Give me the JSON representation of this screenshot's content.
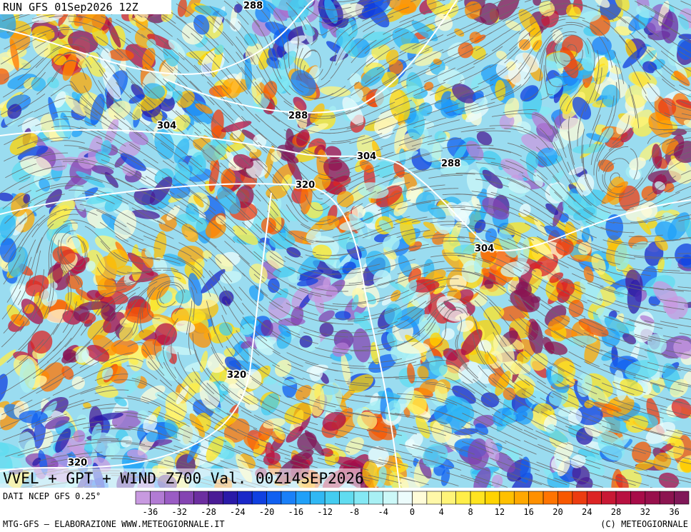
{
  "header": {
    "run": "RUN GFS 01Sep2026 12Z"
  },
  "map": {
    "title": "VVEL + GPT + WIND Z700 Val. 00Z14SEP2026",
    "contour_labels": [
      "288",
      "288",
      "288",
      "304",
      "304",
      "304",
      "320",
      "320",
      "320"
    ]
  },
  "legend": {
    "source": "DATI NCEP GFS 0.25°",
    "range": [
      -38,
      38
    ],
    "ticks": [
      -36,
      -32,
      -28,
      -24,
      -20,
      -16,
      -12,
      -8,
      -4,
      0,
      4,
      8,
      12,
      16,
      20,
      24,
      28,
      32,
      36
    ],
    "colors": [
      "#c89ae0",
      "#b27bd4",
      "#9a5cc4",
      "#8444b2",
      "#6c2ea0",
      "#4a1c96",
      "#2a1aa8",
      "#1a28c8",
      "#1040e0",
      "#1060f0",
      "#1a80f8",
      "#20a0f8",
      "#30b8f4",
      "#44ccf0",
      "#60dcf0",
      "#84e8f4",
      "#a8f0f4",
      "#ccf8f8",
      "#ecfcfc",
      "#fffcd8",
      "#fff8a8",
      "#fff478",
      "#ffee48",
      "#ffe420",
      "#ffd400",
      "#ffc000",
      "#ffa800",
      "#ff9000",
      "#ff7400",
      "#f85800",
      "#ec3c10",
      "#dc2424",
      "#c81834",
      "#b81040",
      "#a80c48",
      "#98104c",
      "#8c1450",
      "#801858"
    ]
  },
  "footer": {
    "left": "MTG-GFS – ELABORAZIONE WWW.METEOGIORNALE.IT",
    "right": "(C) METEOGIORNALE"
  }
}
